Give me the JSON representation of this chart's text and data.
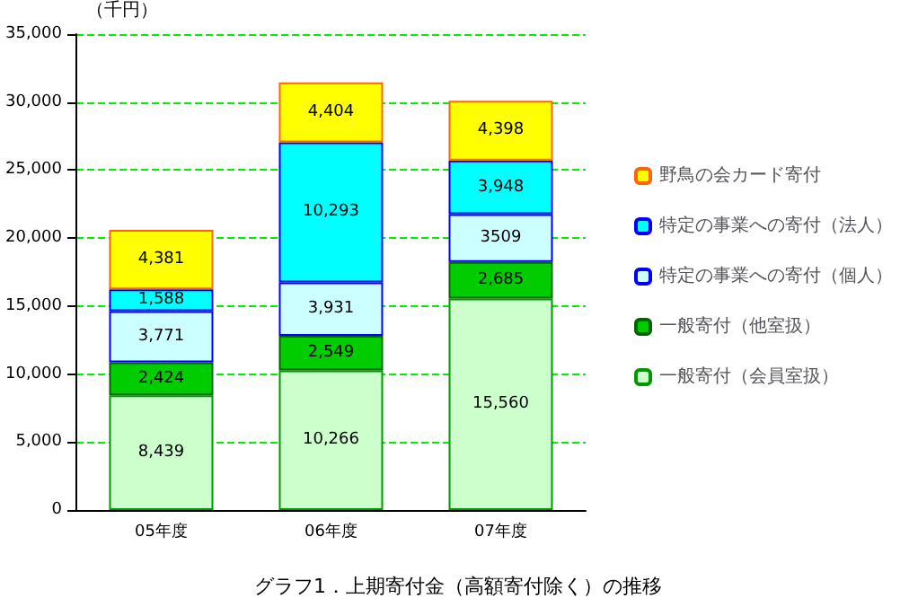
{
  "chart_data": {
    "type": "bar",
    "stacked": true,
    "title": "グラフ1．上期寄付金（高額寄付除く）の推移",
    "ylabel": "（千円）",
    "categories": [
      "05年度",
      "06年度",
      "07年度"
    ],
    "series": [
      {
        "name": "一般寄付（会員室扱）",
        "color": "#ccffcc",
        "values": [
          8439,
          10266,
          15560
        ],
        "value_labels": [
          "8,439",
          "10,266",
          "15,560"
        ]
      },
      {
        "name": "一般寄付（他室扱）",
        "color": "#00cc00",
        "values": [
          2424,
          2549,
          2685
        ],
        "value_labels": [
          "2,424",
          "2,549",
          "2,685"
        ]
      },
      {
        "name": "特定の事業への寄付（個人）",
        "color": "#ccffff",
        "values": [
          3771,
          3931,
          3509
        ],
        "value_labels": [
          "3,771",
          "3,931",
          "3509"
        ]
      },
      {
        "name": "特定の事業への寄付（法人）",
        "color": "#00ffff",
        "values": [
          1588,
          10293,
          3948
        ],
        "value_labels": [
          "1,588",
          "10,293",
          "3,948"
        ]
      },
      {
        "name": "野鳥の会カード寄付",
        "color": "#ffff00",
        "values": [
          4381,
          4404,
          4398
        ],
        "value_labels": [
          "4,381",
          "4,404",
          "4,398"
        ]
      }
    ],
    "ylim": [
      0,
      35000
    ],
    "yticks": [
      {
        "value": 0,
        "label": "0"
      },
      {
        "value": 5000,
        "label": "5,000"
      },
      {
        "value": 10000,
        "label": "10,000"
      },
      {
        "value": 15000,
        "label": "15,000"
      },
      {
        "value": 20000,
        "label": "20,000"
      },
      {
        "value": 25000,
        "label": "25,000"
      },
      {
        "value": 30000,
        "label": "30,000"
      },
      {
        "value": 35000,
        "label": "35,000"
      }
    ],
    "grid": "y",
    "legend": "right"
  }
}
